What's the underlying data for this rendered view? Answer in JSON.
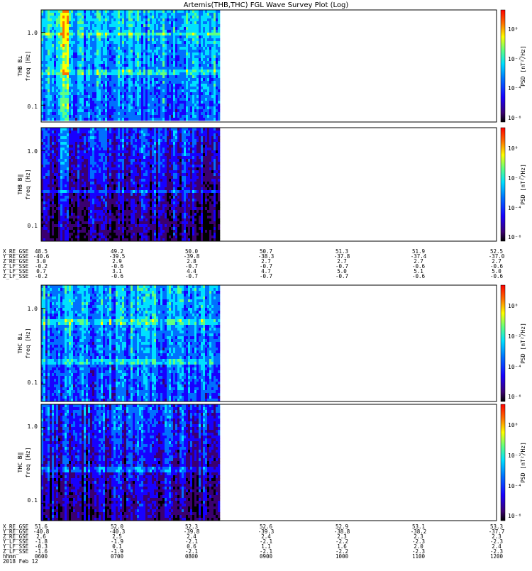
{
  "title": "Artemis(THB,THC) FGL Wave Survey Plot (Log)",
  "colors": {
    "colormap": [
      "#000000",
      "#3b0070",
      "#1800ff",
      "#0070ff",
      "#00e0ff",
      "#60ff80",
      "#ffff00",
      "#ff7000",
      "#ff0000"
    ]
  },
  "panels": [
    {
      "probe_label": "THB B⊥",
      "freq_label": "freq [Hz]",
      "psd_label": "PSD [nT²/Hz]",
      "y_ticks": [
        "1.0",
        "0.1"
      ],
      "cb_ticks": [
        "10⁰",
        "10⁻²",
        "10⁻⁴",
        "10⁻⁶"
      ]
    },
    {
      "probe_label": "THB B‖",
      "freq_label": "freq [Hz]",
      "psd_label": "PSD [nT²/Hz]",
      "y_ticks": [
        "1.0",
        "0.1"
      ],
      "cb_ticks": [
        "10⁰",
        "10⁻²",
        "10⁻⁴",
        "10⁻⁶"
      ]
    },
    {
      "probe_label": "THC B⊥",
      "freq_label": "freq [Hz]",
      "psd_label": "PSD [nT²/Hz]",
      "y_ticks": [
        "1.0",
        "0.1"
      ],
      "cb_ticks": [
        "10⁰",
        "10⁻²",
        "10⁻⁴",
        "10⁻⁶"
      ]
    },
    {
      "probe_label": "THC B‖",
      "freq_label": "freq [Hz]",
      "psd_label": "PSD [nT²/Hz]",
      "y_ticks": [
        "1.0",
        "0.1"
      ],
      "cb_ticks": [
        "10⁰",
        "10⁻²",
        "10⁻⁴",
        "10⁻⁶"
      ]
    }
  ],
  "ephem_thb": {
    "names": [
      "X_RE_GSE",
      "Y_RE_GSE",
      "Z_RE_GSE",
      "Z_LF_SSE",
      "Y_LF_SSE",
      "Z_LF_SSE"
    ],
    "columns": [
      [
        "48.5",
        "-40.6",
        "3.0",
        "-0.2",
        "0.7",
        "-0.2"
      ],
      [
        "49.2",
        "-39.5",
        "2.9",
        "-0.6",
        "3.1",
        "-0.6"
      ],
      [
        "50.0",
        "-39.8",
        "2.8",
        "-0.7",
        "4.4",
        "-0.7"
      ],
      [
        "50.7",
        "-38.3",
        "2.7",
        "-0.7",
        "4.7",
        "-0.7"
      ],
      [
        "51.3",
        "-37.8",
        "2.7",
        "-0.7",
        "5.0",
        "-0.7"
      ],
      [
        "51.9",
        "-37.4",
        "2.7",
        "-0.6",
        "5.1",
        "-0.6"
      ],
      [
        "52.5",
        "-37.0",
        "2.7",
        "-0.6",
        "5.0",
        "-0.6"
      ]
    ]
  },
  "ephem_thc": {
    "names": [
      "X_RE_GSE",
      "Y_RE_GSE",
      "Z_RE_GSE",
      "Y_LF_SSE",
      "Y_LF_SSE",
      "Z_LF_SSE",
      "hhmm",
      "2018 Feb 12"
    ],
    "columns": [
      [
        "51.6",
        "-40.8",
        "2.6",
        "-1.8",
        "-0.3",
        "-1.6",
        "0600"
      ],
      [
        "52.0",
        "-40.3",
        "2.5",
        "-1.9",
        "0.1",
        "-1.9",
        "0700"
      ],
      [
        "52.3",
        "-39.8",
        "2.4",
        "-2.1",
        "0.6",
        "-2.1",
        "0800"
      ],
      [
        "52.6",
        "-39.3",
        "2.4",
        "-2.1",
        "1.1",
        "-2.1",
        "0900"
      ],
      [
        "52.9",
        "-38.8",
        "2.3",
        "-2.2",
        "1.6",
        "-2.2",
        "1000"
      ],
      [
        "53.1",
        "-38.2",
        "2.3",
        "-2.3",
        "2.0",
        "-2.3",
        "1100"
      ],
      [
        "53.3",
        "-37.7",
        "2.3",
        "-2.3",
        "2.4",
        "-2.3",
        "1200"
      ]
    ]
  },
  "chart_data": {
    "type": "heatmap",
    "title": "Artemis(THB,THC) FGL Wave Survey Plot (Log)",
    "x_ticks": [
      "0600",
      "0700",
      "0800",
      "0900",
      "1000",
      "1100",
      "1200"
    ],
    "ylabel": "freq [Hz]",
    "y_scale": "log",
    "colorbar_label": "PSD [nT²/Hz]",
    "colorbar_scale": "log",
    "colorbar_ticks": [
      "10⁰",
      "10⁻²",
      "10⁻⁴",
      "10⁻⁶"
    ],
    "data_extent_fraction_of_time_axis": 0.395,
    "panels": [
      "THB B⊥",
      "THB B‖",
      "THC B⊥",
      "THC B‖"
    ]
  }
}
